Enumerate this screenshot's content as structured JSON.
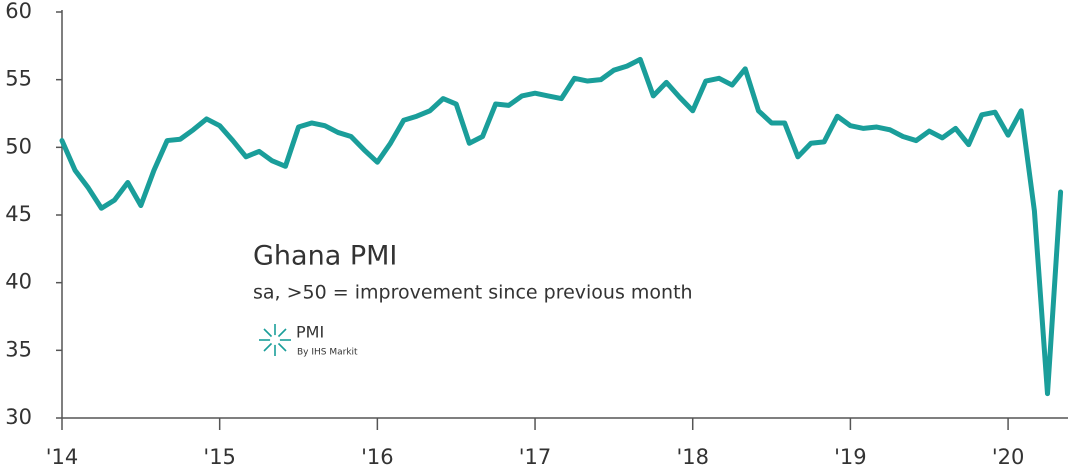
{
  "chart_data": {
    "type": "line",
    "title": "Ghana PMI",
    "subtitle": "sa, >50 = improvement since previous month",
    "logo_text": "PMI",
    "logo_subtext": "By IHS Markit",
    "x": [
      2014.0,
      2014.083,
      2014.167,
      2014.25,
      2014.333,
      2014.417,
      2014.5,
      2014.583,
      2014.667,
      2014.75,
      2014.833,
      2014.917,
      2015.0,
      2015.083,
      2015.167,
      2015.25,
      2015.333,
      2015.417,
      2015.5,
      2015.583,
      2015.667,
      2015.75,
      2015.833,
      2015.917,
      2016.0,
      2016.083,
      2016.167,
      2016.25,
      2016.333,
      2016.417,
      2016.5,
      2016.583,
      2016.667,
      2016.75,
      2016.833,
      2016.917,
      2017.0,
      2017.083,
      2017.167,
      2017.25,
      2017.333,
      2017.417,
      2017.5,
      2017.583,
      2017.667,
      2017.75,
      2017.833,
      2017.917,
      2018.0,
      2018.083,
      2018.167,
      2018.25,
      2018.333,
      2018.417,
      2018.5,
      2018.583,
      2018.667,
      2018.75,
      2018.833,
      2018.917,
      2019.0,
      2019.083,
      2019.167,
      2019.25,
      2019.333,
      2019.417,
      2019.5,
      2019.583,
      2019.667,
      2019.75,
      2019.833,
      2019.917,
      2020.0,
      2020.083,
      2020.167,
      2020.25,
      2020.333
    ],
    "series": [
      {
        "name": "Ghana PMI",
        "color": "#1a9e9a",
        "values": [
          50.5,
          48.3,
          47.0,
          45.5,
          46.1,
          47.4,
          45.7,
          48.3,
          50.5,
          50.6,
          51.3,
          52.1,
          51.6,
          50.5,
          49.3,
          49.7,
          49.0,
          48.6,
          51.5,
          51.8,
          51.6,
          51.1,
          50.8,
          49.8,
          48.9,
          50.3,
          52.0,
          52.3,
          52.7,
          53.6,
          53.2,
          50.3,
          50.8,
          53.2,
          53.1,
          53.8,
          54.0,
          53.8,
          53.6,
          55.1,
          54.9,
          55.0,
          55.7,
          56.0,
          56.5,
          53.8,
          54.8,
          53.7,
          52.7,
          54.9,
          55.1,
          54.6,
          55.8,
          52.7,
          51.8,
          51.8,
          49.3,
          50.3,
          50.4,
          52.3,
          51.6,
          51.4,
          51.5,
          51.3,
          50.8,
          50.5,
          51.2,
          50.7,
          51.4,
          50.2,
          52.4,
          52.6,
          50.9,
          52.7,
          45.3,
          31.8,
          46.7
        ]
      }
    ],
    "xlim": [
      2014,
      2020.38
    ],
    "xticks": [
      {
        "value": 2014,
        "label": "'14"
      },
      {
        "value": 2015,
        "label": "'15"
      },
      {
        "value": 2016,
        "label": "'16"
      },
      {
        "value": 2017,
        "label": "'17"
      },
      {
        "value": 2018,
        "label": "'18"
      },
      {
        "value": 2019,
        "label": "'19"
      },
      {
        "value": 2020,
        "label": "'20"
      }
    ],
    "ylim": [
      30,
      60
    ],
    "yticks": [
      30,
      35,
      40,
      45,
      50,
      55,
      60
    ]
  }
}
